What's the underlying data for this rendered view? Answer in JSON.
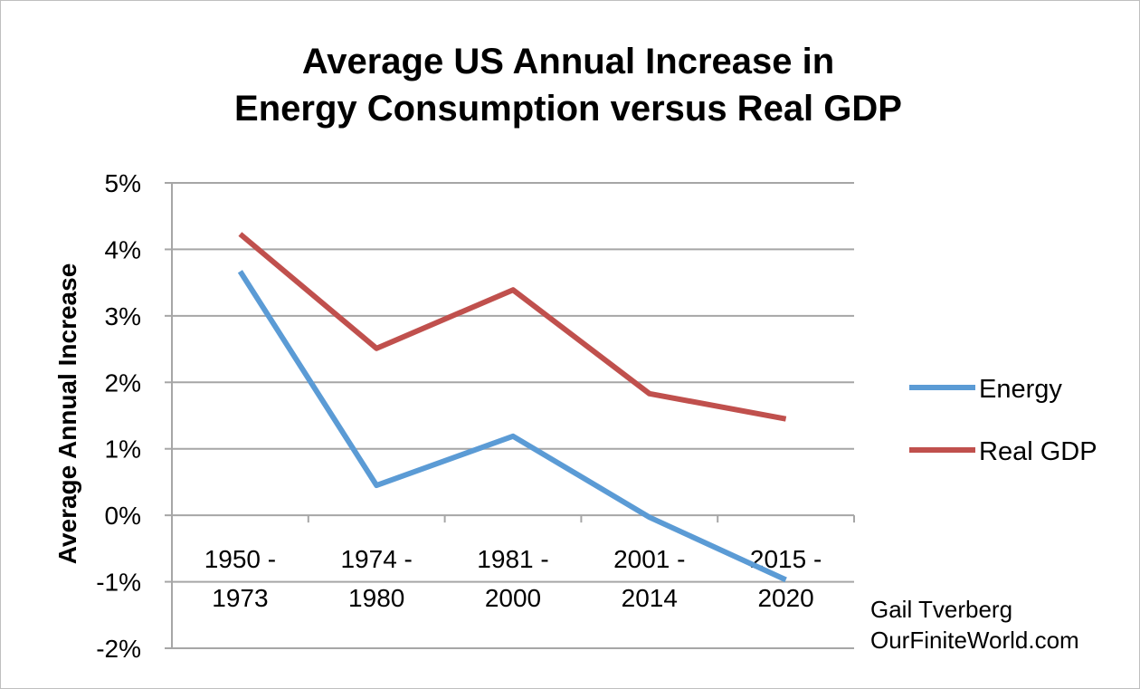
{
  "chart_data": {
    "type": "line",
    "title_lines": [
      "Average US Annual Increase in",
      "Energy Consumption versus Real GDP"
    ],
    "ylabel": "Average Annual Increase",
    "xlabel": "",
    "categories": [
      [
        "1950 -",
        "1973"
      ],
      [
        "1974 -",
        "1980"
      ],
      [
        "1981 -",
        "2000"
      ],
      [
        "2001 -",
        "2014"
      ],
      [
        "2015 -",
        "2020"
      ]
    ],
    "ylim": [
      -2,
      5
    ],
    "yticks": [
      5,
      4,
      3,
      2,
      1,
      0,
      -1,
      -2
    ],
    "ytick_labels": [
      "5%",
      "4%",
      "3%",
      "2%",
      "1%",
      "0%",
      "-1%",
      "-2%"
    ],
    "grid": "horizontal",
    "legend_position": "right",
    "series": [
      {
        "name": "Energy",
        "color": "#5b9bd5",
        "values": [
          3.67,
          0.45,
          1.19,
          -0.03,
          -0.97
        ]
      },
      {
        "name": "Real GDP",
        "color": "#c0504d",
        "values": [
          4.23,
          2.51,
          3.39,
          1.83,
          1.45
        ]
      }
    ]
  },
  "credit": {
    "line1": "Gail Tverberg",
    "line2": "OurFiniteWorld.com"
  }
}
